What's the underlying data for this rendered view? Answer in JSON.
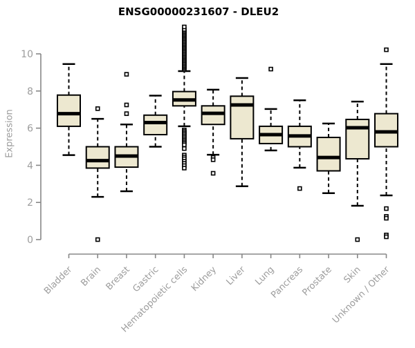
{
  "colors": {
    "background": "#FFFFFF",
    "box_fill": "#EDE8D0",
    "box_stroke": "#000000",
    "median_color": "#000000",
    "whisker_color": "#000000",
    "outlier_fill": "#FFFFFF",
    "axis_line": "#878787",
    "tick_text": "#9C9C9C",
    "title_text": "#000000"
  },
  "chart_data": {
    "type": "boxplot",
    "title": "ENSG00000231607 - DLEU2",
    "xlabel": "",
    "ylabel": "Expression",
    "ylim": [
      0,
      10
    ],
    "yticks": [
      0,
      2,
      4,
      6,
      8,
      10
    ],
    "grid": false,
    "legend": "none",
    "categories": [
      "Bladder",
      "Brain",
      "Breast",
      "Gastric",
      "Hematopoietic cells",
      "Kidney",
      "Liver",
      "Lung",
      "Pancreas",
      "Prostate",
      "Skin",
      "Unknown / Other"
    ],
    "series": [
      {
        "name": "Bladder",
        "whisker_low": 4.55,
        "q1": 6.1,
        "median": 6.78,
        "q3": 7.78,
        "whisker_high": 9.45,
        "outliers": []
      },
      {
        "name": "Brain",
        "whisker_low": 2.3,
        "q1": 3.85,
        "median": 4.25,
        "q3": 5.0,
        "whisker_high": 6.5,
        "outliers": [
          7.05,
          0.0
        ]
      },
      {
        "name": "Breast",
        "whisker_low": 2.6,
        "q1": 3.9,
        "median": 4.5,
        "q3": 5.0,
        "whisker_high": 6.2,
        "outliers": [
          8.9,
          7.25,
          6.78
        ]
      },
      {
        "name": "Gastric",
        "whisker_low": 5.0,
        "q1": 5.65,
        "median": 6.3,
        "q3": 6.7,
        "whisker_high": 7.75,
        "outliers": []
      },
      {
        "name": "Hematopoietic cells",
        "whisker_low": 6.1,
        "q1": 7.2,
        "median": 7.52,
        "q3": 7.97,
        "whisker_high": 9.07,
        "outliers": [
          5.9,
          5.82,
          5.74,
          5.66,
          5.58,
          5.5,
          5.42,
          5.34,
          5.26,
          5.18,
          5.1,
          4.9,
          4.55,
          4.45,
          4.35,
          4.22,
          4.1,
          3.98,
          3.85,
          9.15,
          9.22,
          9.29,
          9.36,
          9.43,
          9.5,
          9.57,
          9.64,
          9.71,
          9.78,
          9.85,
          9.92,
          9.99,
          10.06,
          10.13,
          10.2,
          10.27,
          10.34,
          10.41,
          10.48,
          10.55,
          10.62,
          10.69,
          10.76,
          10.83,
          10.9,
          10.97,
          11.04,
          11.11,
          11.18,
          11.25,
          11.32,
          11.45
        ]
      },
      {
        "name": "Kidney",
        "whisker_low": 4.57,
        "q1": 6.2,
        "median": 6.8,
        "q3": 7.2,
        "whisker_high": 8.07,
        "outliers": [
          4.42,
          4.3,
          3.57
        ]
      },
      {
        "name": "Liver",
        "whisker_low": 2.87,
        "q1": 5.43,
        "median": 7.25,
        "q3": 7.72,
        "whisker_high": 8.7,
        "outliers": []
      },
      {
        "name": "Lung",
        "whisker_low": 4.8,
        "q1": 5.17,
        "median": 5.65,
        "q3": 6.1,
        "whisker_high": 7.03,
        "outliers": [
          9.18
        ]
      },
      {
        "name": "Pancreas",
        "whisker_low": 3.87,
        "q1": 5.0,
        "median": 5.58,
        "q3": 6.1,
        "whisker_high": 7.5,
        "outliers": [
          2.75
        ]
      },
      {
        "name": "Prostate",
        "whisker_low": 2.5,
        "q1": 3.7,
        "median": 4.42,
        "q3": 5.5,
        "whisker_high": 6.25,
        "outliers": []
      },
      {
        "name": "Skin",
        "whisker_low": 1.82,
        "q1": 4.35,
        "median": 6.02,
        "q3": 6.47,
        "whisker_high": 7.43,
        "outliers": [
          0.0
        ]
      },
      {
        "name": "Unknown / Other",
        "whisker_low": 2.38,
        "q1": 5.0,
        "median": 5.8,
        "q3": 6.78,
        "whisker_high": 9.45,
        "outliers": [
          10.22,
          1.67,
          1.25,
          1.15,
          0.25,
          0.15
        ]
      }
    ]
  }
}
